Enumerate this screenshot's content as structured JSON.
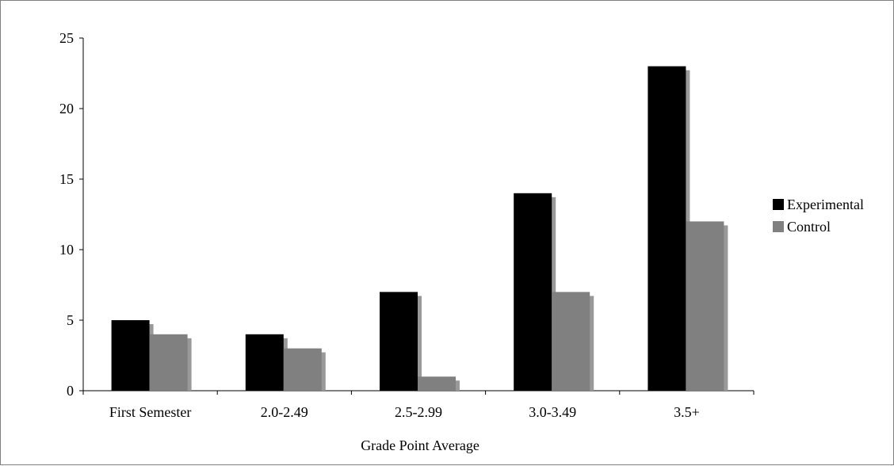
{
  "chart_data": {
    "type": "bar",
    "title": "",
    "xlabel": "Grade Point Average",
    "ylabel": "",
    "categories": [
      "First Semester",
      "2.0-2.49",
      "2.5-2.99",
      "3.0-3.49",
      "3.5+"
    ],
    "series": [
      {
        "name": "Experimental",
        "values": [
          5,
          4,
          7,
          14,
          23
        ],
        "color": "#000000"
      },
      {
        "name": "Control",
        "values": [
          4,
          3,
          1,
          7,
          12
        ],
        "color": "#808080"
      }
    ],
    "ylim": [
      0,
      25
    ],
    "yticks": [
      "0",
      "5",
      "10",
      "15",
      "20",
      "25"
    ],
    "grid": false,
    "legend_position": "right",
    "bar_style": "3d-shadow"
  }
}
